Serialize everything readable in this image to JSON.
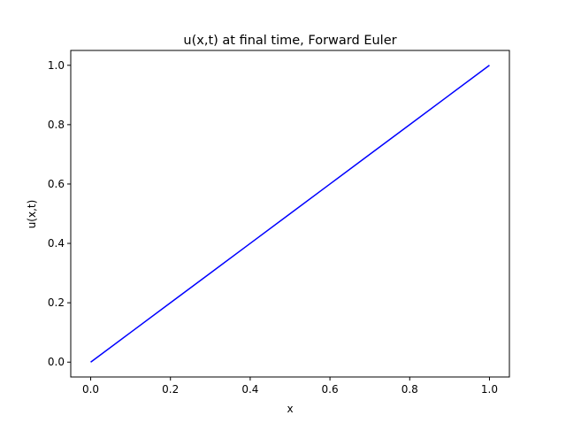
{
  "chart_data": {
    "type": "line",
    "title": "u(x,t) at final time, Forward Euler",
    "xlabel": "x",
    "ylabel": "u(x,t)",
    "xlim": [
      -0.05,
      1.05
    ],
    "ylim": [
      -0.05,
      1.05
    ],
    "x_ticks": [
      0.0,
      0.2,
      0.4,
      0.6,
      0.8,
      1.0
    ],
    "x_tick_labels": [
      "0.0",
      "0.2",
      "0.4",
      "0.6",
      "0.8",
      "1.0"
    ],
    "y_ticks": [
      0.0,
      0.2,
      0.4,
      0.6,
      0.8,
      1.0
    ],
    "y_tick_labels": [
      "0.0",
      "0.2",
      "0.4",
      "0.6",
      "0.8",
      "1.0"
    ],
    "grid": false,
    "legend": false,
    "series": [
      {
        "color": "#0000ff",
        "x": [
          0.0,
          0.1,
          0.2,
          0.3,
          0.4,
          0.5,
          0.6,
          0.7,
          0.8,
          0.9,
          1.0
        ],
        "y": [
          0.0,
          0.1,
          0.2,
          0.3,
          0.4,
          0.5,
          0.6,
          0.7,
          0.8,
          0.9,
          1.0
        ]
      }
    ]
  }
}
